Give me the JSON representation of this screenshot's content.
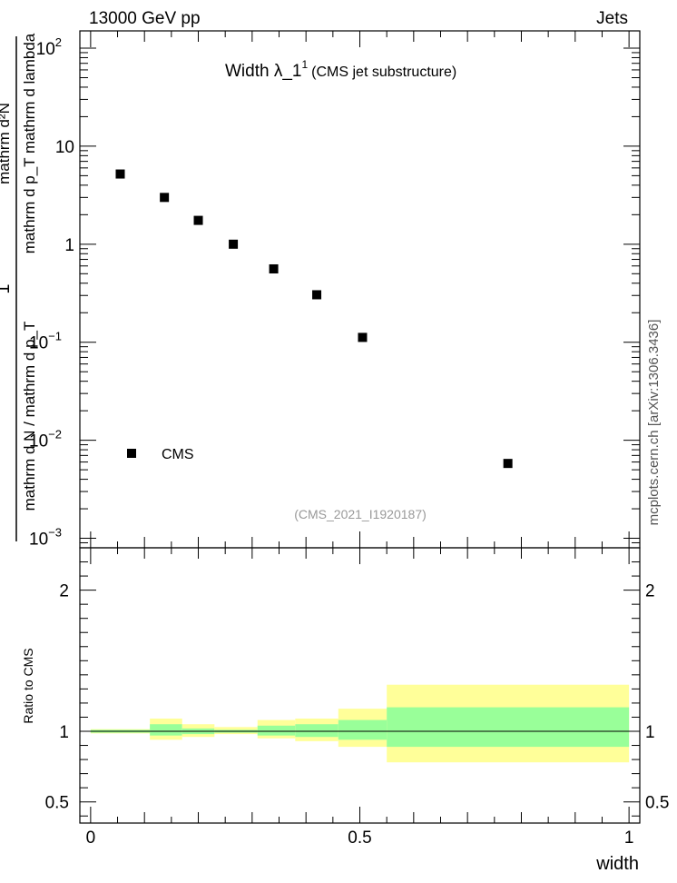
{
  "header": {
    "energy_label": "13000 GeV pp",
    "category_label": "Jets",
    "source_note": "(CMS_2021_I1920187)",
    "side_note": "mcplots.cern.ch [arXiv:1306.3436]"
  },
  "chart_data": [
    {
      "type": "scatter",
      "title_main": "Width λ_1",
      "title_sup": "1",
      "title_note": "(CMS jet substructure)",
      "ylabel_numerator": "1",
      "ylabel_denominator": "mathrm d N / mathrm d p_T",
      "ylabel_right_num": "mathrm d²N",
      "ylabel_right_den": "mathrm d p_T mathrm d lambda",
      "yscale": "log",
      "xlim": [
        -0.02,
        1.02
      ],
      "ylim": [
        0.0008,
        150
      ],
      "yticks": [
        {
          "value": 100,
          "base": "10",
          "exp": "2"
        },
        {
          "value": 10,
          "base": "10",
          "exp": ""
        },
        {
          "value": 1,
          "base": "1",
          "exp": ""
        },
        {
          "value": 0.1,
          "base": "10",
          "exp": "−1"
        },
        {
          "value": 0.01,
          "base": "10",
          "exp": "−2"
        },
        {
          "value": 0.001,
          "base": "10",
          "exp": "−3"
        }
      ],
      "series": [
        {
          "name": "CMS",
          "marker": "square",
          "color": "#000000",
          "x": [
            0.055,
            0.137,
            0.2,
            0.265,
            0.34,
            0.42,
            0.505,
            0.775
          ],
          "y": [
            5.2,
            3.0,
            1.75,
            1.0,
            0.56,
            0.305,
            0.112,
            0.0058
          ]
        }
      ],
      "legend_position": "bottom-left",
      "grid": false
    },
    {
      "type": "area",
      "ylabel": "Ratio to CMS",
      "xlabel": "width",
      "xlim": [
        -0.02,
        1.02
      ],
      "ylim": [
        0.35,
        2.3
      ],
      "xticks": [
        {
          "value": 0,
          "label": "0"
        },
        {
          "value": 0.5,
          "label": "0.5"
        },
        {
          "value": 1,
          "label": "1"
        }
      ],
      "yticks": [
        {
          "value": 2,
          "label": "2"
        },
        {
          "value": 1,
          "label": "1"
        },
        {
          "value": 0.5,
          "label": "0.5"
        }
      ],
      "reference_line": 1,
      "band_colors": {
        "outer": "#ffff99",
        "inner": "#99ff99"
      },
      "bins": [
        {
          "x0": 0.0,
          "x1": 0.11,
          "outer": [
            0.985,
            1.015
          ],
          "inner": [
            0.99,
            1.01
          ]
        },
        {
          "x0": 0.11,
          "x1": 0.17,
          "outer": [
            0.94,
            1.09
          ],
          "inner": [
            0.97,
            1.05
          ]
        },
        {
          "x0": 0.17,
          "x1": 0.23,
          "outer": [
            0.96,
            1.05
          ],
          "inner": [
            0.98,
            1.02
          ]
        },
        {
          "x0": 0.23,
          "x1": 0.31,
          "outer": [
            0.98,
            1.03
          ],
          "inner": [
            0.99,
            1.01
          ]
        },
        {
          "x0": 0.31,
          "x1": 0.38,
          "outer": [
            0.95,
            1.08
          ],
          "inner": [
            0.97,
            1.04
          ]
        },
        {
          "x0": 0.38,
          "x1": 0.46,
          "outer": [
            0.93,
            1.09
          ],
          "inner": [
            0.96,
            1.05
          ]
        },
        {
          "x0": 0.46,
          "x1": 0.55,
          "outer": [
            0.89,
            1.16
          ],
          "inner": [
            0.94,
            1.08
          ]
        },
        {
          "x0": 0.55,
          "x1": 1.0,
          "outer": [
            0.78,
            1.33
          ],
          "inner": [
            0.89,
            1.17
          ]
        }
      ]
    }
  ]
}
